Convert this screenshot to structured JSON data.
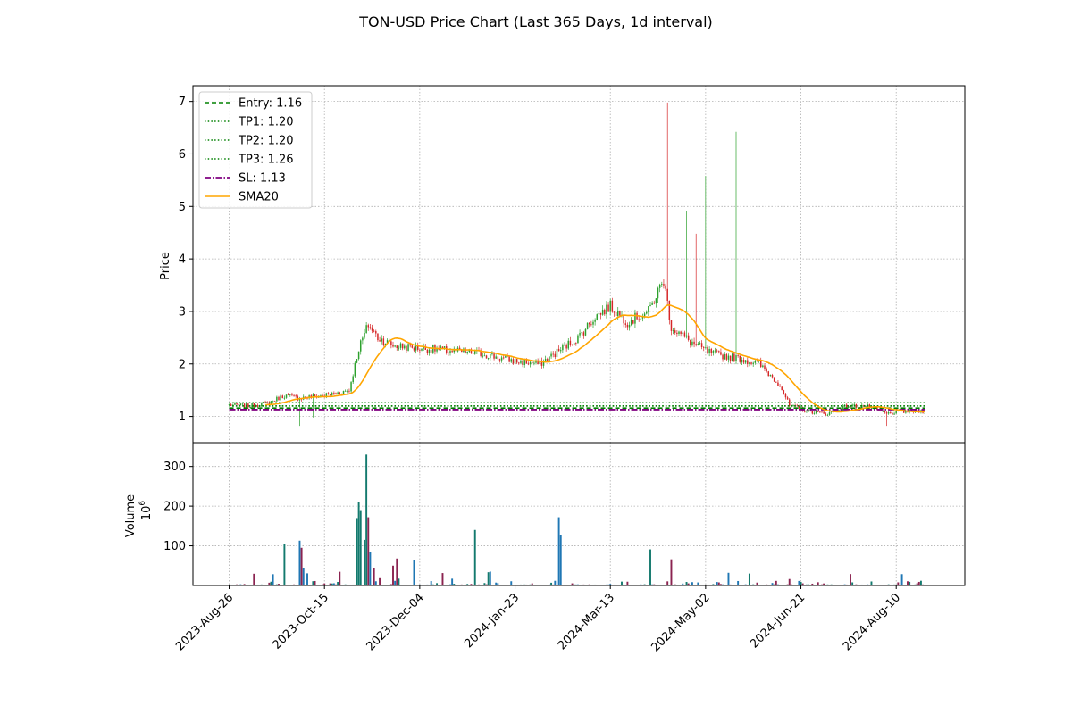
{
  "title": "TON-USD Price Chart (Last 365 Days, 1d interval)",
  "colors": {
    "up": "#2ca02c",
    "down": "#d62728",
    "entry": "#008000",
    "tp": "#008000",
    "sl": "#800080",
    "sma": "#ffa500",
    "vol_up": "#137a6e",
    "vol_down": "#8b2350",
    "vol_other": "#1f77b4"
  },
  "chart_data": [
    {
      "type": "candlestick",
      "ylabel": "Price",
      "ylim": [
        0.5,
        7.3
      ],
      "yticks": [
        1,
        2,
        3,
        4,
        5,
        6,
        7
      ],
      "grid": true,
      "legend_position": "top-left",
      "legend": [
        "Entry: 1.16",
        "TP1: 1.20",
        "TP2: 1.20",
        "TP3: 1.26",
        "SL: 1.13",
        "SMA20"
      ],
      "levels": {
        "entry": 1.16,
        "tp1": 1.2,
        "tp2": 1.2,
        "tp3": 1.26,
        "sl": 1.13
      },
      "x_range": [
        "2023-08-26",
        "2024-08-25"
      ],
      "x_domain": [
        "2023-08-07",
        "2024-09-15"
      ],
      "xticks": [
        "2023-Aug-26",
        "2023-Oct-15",
        "2023-Dec-04",
        "2024-Jan-23",
        "2024-Mar-13",
        "2024-May-02",
        "2024-Jun-21",
        "2024-Aug-10"
      ],
      "close_anchors": [
        [
          "2023-08-26",
          1.22
        ],
        [
          "2023-09-05",
          1.2
        ],
        [
          "2023-09-15",
          1.25
        ],
        [
          "2023-09-24",
          1.4
        ],
        [
          "2023-10-01",
          1.35
        ],
        [
          "2023-10-10",
          1.38
        ],
        [
          "2023-10-18",
          1.42
        ],
        [
          "2023-10-28",
          1.5
        ],
        [
          "2023-11-02",
          2.3
        ],
        [
          "2023-11-07",
          2.75
        ],
        [
          "2023-11-12",
          2.5
        ],
        [
          "2023-11-20",
          2.35
        ],
        [
          "2023-12-04",
          2.3
        ],
        [
          "2023-12-20",
          2.25
        ],
        [
          "2024-01-05",
          2.2
        ],
        [
          "2024-01-23",
          2.05
        ],
        [
          "2024-02-05",
          2.0
        ],
        [
          "2024-02-15",
          2.25
        ],
        [
          "2024-02-25",
          2.5
        ],
        [
          "2024-03-05",
          2.9
        ],
        [
          "2024-03-13",
          3.1
        ],
        [
          "2024-03-22",
          2.8
        ],
        [
          "2024-04-02",
          3.0
        ],
        [
          "2024-04-10",
          3.6
        ],
        [
          "2024-04-14",
          2.7
        ],
        [
          "2024-04-25",
          2.4
        ],
        [
          "2024-05-05",
          2.2
        ],
        [
          "2024-05-20",
          2.1
        ],
        [
          "2024-05-30",
          2.0
        ],
        [
          "2024-06-10",
          1.6
        ],
        [
          "2024-06-15",
          1.2
        ],
        [
          "2024-06-25",
          1.1
        ],
        [
          "2024-07-05",
          1.05
        ],
        [
          "2024-07-15",
          1.2
        ],
        [
          "2024-07-25",
          1.2
        ],
        [
          "2024-08-05",
          1.05
        ],
        [
          "2024-08-15",
          1.1
        ],
        [
          "2024-08-25",
          1.1
        ]
      ],
      "wick_spikes": [
        [
          "2023-10-02",
          0.82,
          "low"
        ],
        [
          "2023-10-09",
          0.98,
          "low"
        ],
        [
          "2024-04-12",
          6.98,
          "high"
        ],
        [
          "2024-04-22",
          4.92,
          "high"
        ],
        [
          "2024-04-27",
          4.48,
          "high"
        ],
        [
          "2024-05-02",
          5.58,
          "high"
        ],
        [
          "2024-05-18",
          6.42,
          "high"
        ],
        [
          "2024-08-05",
          0.82,
          "low"
        ]
      ]
    },
    {
      "type": "bar",
      "ylabel": "Volume",
      "yunit": "10^6",
      "ylim": [
        0,
        360
      ],
      "yticks": [
        100,
        200,
        300
      ],
      "grid": true,
      "baseline": 2,
      "spikes": [
        [
          "2023-09-24",
          105
        ],
        [
          "2023-10-02",
          113
        ],
        [
          "2023-10-03",
          95
        ],
        [
          "2023-10-04",
          45
        ],
        [
          "2023-11-01",
          170
        ],
        [
          "2023-11-02",
          210
        ],
        [
          "2023-11-03",
          190
        ],
        [
          "2023-11-05",
          115
        ],
        [
          "2023-11-06",
          330
        ],
        [
          "2023-11-07",
          172
        ],
        [
          "2023-11-08",
          85
        ],
        [
          "2023-11-10",
          45
        ],
        [
          "2023-11-20",
          50
        ],
        [
          "2023-11-22",
          68
        ],
        [
          "2023-12-01",
          63
        ],
        [
          "2024-01-02",
          140
        ],
        [
          "2024-02-15",
          172
        ],
        [
          "2024-02-16",
          128
        ],
        [
          "2024-04-03",
          91
        ],
        [
          "2024-04-14",
          66
        ]
      ]
    }
  ]
}
